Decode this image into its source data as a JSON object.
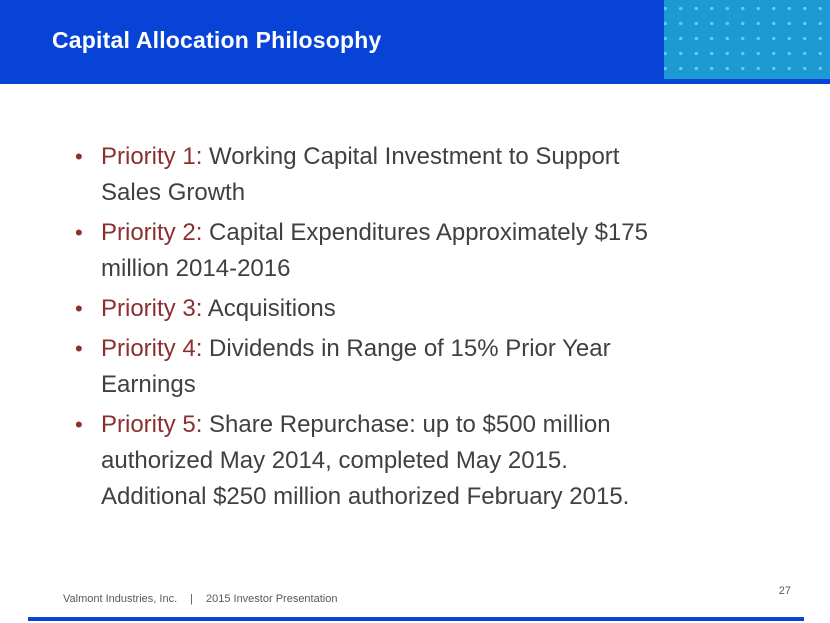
{
  "slide": {
    "title": "Capital Allocation Philosophy",
    "bullet_glyph": "•",
    "bullets": [
      {
        "prefix": "Priority 1:",
        "lines": [
          "Working Capital Investment to Support",
          "Sales Growth"
        ]
      },
      {
        "prefix": "Priority 2:",
        "lines": [
          "Capital Expenditures Approximately $175",
          "million 2014-2016"
        ]
      },
      {
        "prefix": "Priority 3:",
        "lines": [
          "Acquisitions"
        ]
      },
      {
        "prefix": "Priority 4:",
        "lines": [
          "Dividends in Range of 15% Prior Year",
          "Earnings"
        ]
      },
      {
        "prefix": "Priority 5:",
        "lines": [
          "Share Repurchase: up to $500 million",
          "authorized May 2014, completed May 2015.",
          "Additional $250 million authorized February 2015."
        ]
      }
    ],
    "footer": {
      "company": "Valmont Industries, Inc.",
      "separator": "|",
      "presentation": "2015 Investor Presentation"
    },
    "page_number": "27",
    "colors": {
      "header_blue": "#0843d8",
      "accent_teal": "#1c9ad4",
      "priority_maroon": "#8b2f2f",
      "body_text": "#404040",
      "footer_gray": "#595959"
    }
  }
}
